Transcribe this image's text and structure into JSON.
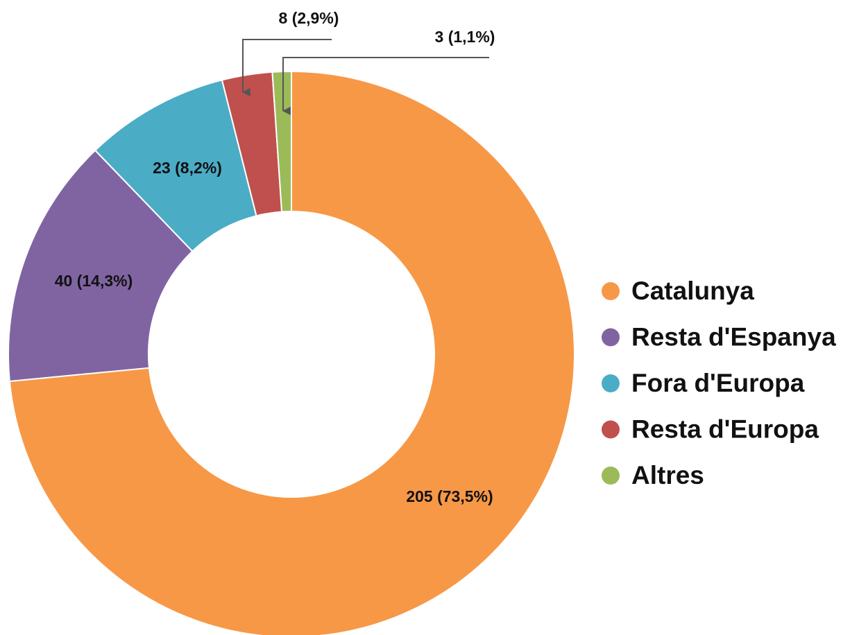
{
  "chart_data": {
    "type": "donut",
    "categories": [
      "Catalunya",
      "Resta d'Espanya",
      "Fora d'Europa",
      "Resta d'Europa",
      "Altres"
    ],
    "values": [
      205,
      40,
      23,
      8,
      3
    ],
    "value_labels": [
      "205 (73,5%)",
      "40 (14,3%)",
      "23 (8,2%)",
      "8 (2,9%)",
      "3 (1,1%)"
    ],
    "colors": [
      "#f79847",
      "#8064a2",
      "#4bacc6",
      "#c0504d",
      "#9bbb59"
    ],
    "legend": "right"
  }
}
